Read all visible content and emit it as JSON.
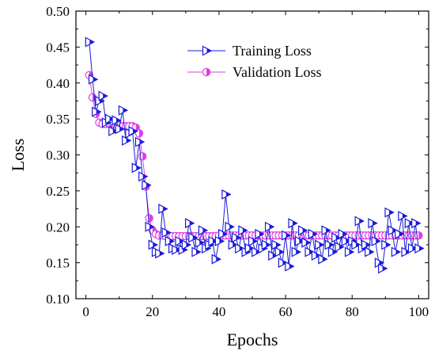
{
  "chart_data": {
    "type": "line",
    "title": "",
    "xlabel": "Epochs",
    "ylabel": "Loss",
    "xlim": [
      -3,
      103
    ],
    "ylim": [
      0.1,
      0.5
    ],
    "xticks": [
      0,
      20,
      40,
      60,
      80,
      100
    ],
    "xtick_labels": [
      "0",
      "20",
      "40",
      "60",
      "80",
      "100"
    ],
    "yticks": [
      0.1,
      0.15,
      0.2,
      0.25,
      0.3,
      0.35,
      0.4,
      0.45,
      0.5
    ],
    "ytick_labels": [
      "0.10",
      "0.15",
      "0.20",
      "0.25",
      "0.30",
      "0.35",
      "0.40",
      "0.45",
      "0.50"
    ],
    "grid": false,
    "legend_position": "top-right",
    "colors": {
      "training": "#1a1adb",
      "validation": "#e23ce2"
    },
    "x": [
      1,
      2,
      3,
      4,
      5,
      6,
      7,
      8,
      9,
      10,
      11,
      12,
      13,
      14,
      15,
      16,
      17,
      18,
      19,
      20,
      21,
      22,
      23,
      24,
      25,
      26,
      27,
      28,
      29,
      30,
      31,
      32,
      33,
      34,
      35,
      36,
      37,
      38,
      39,
      40,
      41,
      42,
      43,
      44,
      45,
      46,
      47,
      48,
      49,
      50,
      51,
      52,
      53,
      54,
      55,
      56,
      57,
      58,
      59,
      60,
      61,
      62,
      63,
      64,
      65,
      66,
      67,
      68,
      69,
      70,
      71,
      72,
      73,
      74,
      75,
      76,
      77,
      78,
      79,
      80,
      81,
      82,
      83,
      84,
      85,
      86,
      87,
      88,
      89,
      90,
      91,
      92,
      93,
      94,
      95,
      96,
      97,
      98,
      99,
      100
    ],
    "series": [
      {
        "name": "Training Loss",
        "marker": "right-triangle",
        "values": [
          0.457,
          0.405,
          0.36,
          0.375,
          0.382,
          0.345,
          0.35,
          0.333,
          0.348,
          0.336,
          0.362,
          0.32,
          0.33,
          0.333,
          0.282,
          0.318,
          0.27,
          0.258,
          0.2,
          0.175,
          0.165,
          0.163,
          0.225,
          0.192,
          0.18,
          0.17,
          0.168,
          0.18,
          0.168,
          0.175,
          0.205,
          0.185,
          0.165,
          0.178,
          0.195,
          0.17,
          0.175,
          0.18,
          0.155,
          0.18,
          0.19,
          0.245,
          0.2,
          0.175,
          0.185,
          0.17,
          0.195,
          0.165,
          0.17,
          0.18,
          0.165,
          0.19,
          0.17,
          0.175,
          0.2,
          0.16,
          0.175,
          0.165,
          0.15,
          0.188,
          0.145,
          0.205,
          0.165,
          0.18,
          0.195,
          0.178,
          0.165,
          0.19,
          0.16,
          0.175,
          0.155,
          0.195,
          0.175,
          0.165,
          0.185,
          0.172,
          0.19,
          0.18,
          0.165,
          0.18,
          0.175,
          0.208,
          0.17,
          0.175,
          0.165,
          0.205,
          0.18,
          0.15,
          0.142,
          0.175,
          0.22,
          0.195,
          0.165,
          0.19,
          0.215,
          0.165,
          0.205,
          0.17,
          0.205,
          0.17
        ]
      },
      {
        "name": "Validation Loss",
        "marker": "half-filled-circle",
        "values": [
          0.411,
          0.38,
          0.357,
          0.345,
          0.343,
          0.343,
          0.344,
          0.344,
          0.342,
          0.341,
          0.34,
          0.34,
          0.34,
          0.34,
          0.338,
          0.33,
          0.298,
          0.256,
          0.212,
          0.195,
          0.19,
          0.188,
          0.188,
          0.187,
          0.187,
          0.187,
          0.187,
          0.187,
          0.187,
          0.187,
          0.187,
          0.187,
          0.187,
          0.187,
          0.187,
          0.187,
          0.187,
          0.187,
          0.187,
          0.188,
          0.188,
          0.188,
          0.188,
          0.188,
          0.188,
          0.188,
          0.188,
          0.188,
          0.188,
          0.188,
          0.188,
          0.188,
          0.188,
          0.188,
          0.188,
          0.188,
          0.188,
          0.188,
          0.188,
          0.188,
          0.188,
          0.188,
          0.188,
          0.188,
          0.188,
          0.188,
          0.188,
          0.188,
          0.188,
          0.188,
          0.188,
          0.188,
          0.188,
          0.188,
          0.188,
          0.188,
          0.188,
          0.188,
          0.188,
          0.188,
          0.188,
          0.188,
          0.188,
          0.188,
          0.188,
          0.188,
          0.188,
          0.188,
          0.188,
          0.188,
          0.188,
          0.188,
          0.188,
          0.188,
          0.188,
          0.188,
          0.188,
          0.188,
          0.188,
          0.188
        ]
      }
    ]
  }
}
